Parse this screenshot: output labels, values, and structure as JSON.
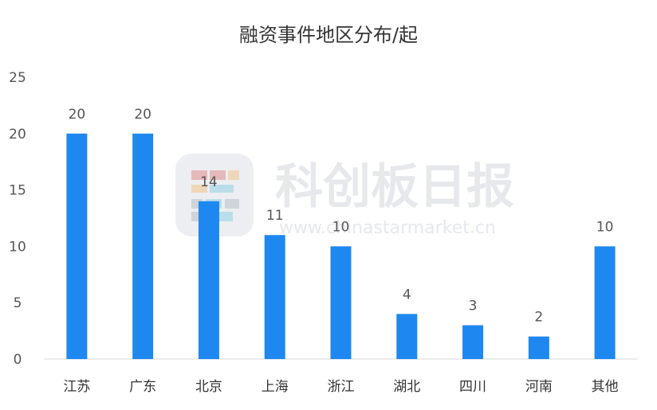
{
  "chart_data": {
    "type": "bar",
    "title": "融资事件地区分布/起",
    "categories": [
      "江苏",
      "广东",
      "北京",
      "上海",
      "浙江",
      "湖北",
      "四川",
      "河南",
      "其他"
    ],
    "values": [
      20,
      20,
      14,
      11,
      10,
      4,
      3,
      2,
      10
    ],
    "data_labels": [
      "20",
      "20",
      "14",
      "11",
      "10",
      "4",
      "3",
      "2",
      "10"
    ],
    "yticks": [
      0,
      5,
      10,
      15,
      20,
      25
    ],
    "ylim": [
      0,
      25
    ],
    "grid": false,
    "legend": "none",
    "bar_color": "#1e88f0"
  },
  "watermark": {
    "brand": "科创板日报",
    "url": "www.chinastarmarket.cn",
    "logo_colors": [
      "#d9534f",
      "#f0ad4e",
      "#5bc0de",
      "#9aa4b0"
    ]
  }
}
